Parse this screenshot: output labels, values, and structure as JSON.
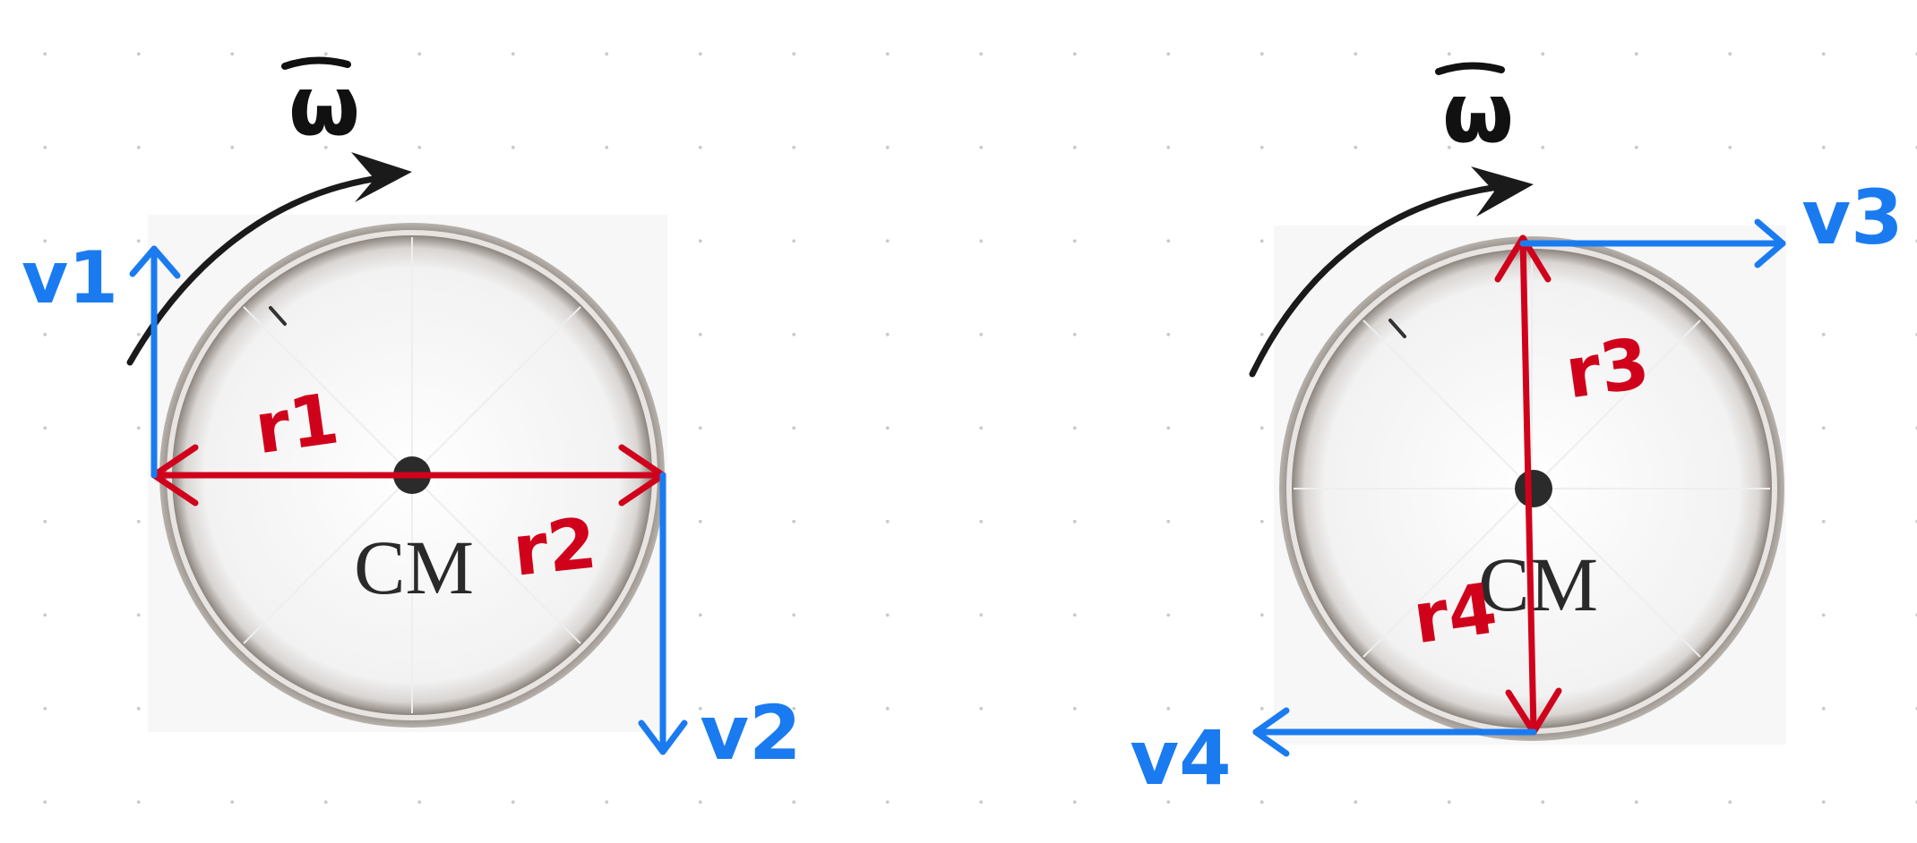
{
  "diagram": {
    "left_wheel": {
      "center_label": "CM",
      "omega_label": "ω",
      "radius_labels": [
        "r1",
        "r2"
      ],
      "velocity_labels": [
        "v1",
        "v2"
      ]
    },
    "right_wheel": {
      "center_label": "CM",
      "omega_label": "ω",
      "radius_labels": [
        "r3",
        "r4"
      ],
      "velocity_labels": [
        "v3",
        "v4"
      ]
    }
  },
  "colors": {
    "radius_vectors": "#d0021b",
    "velocity_vectors": "#1a7bf0",
    "rotation_arrow": "#1a1a1a",
    "wheel_rim": "#7a726c",
    "grid_dots": "#c9c9c9"
  }
}
